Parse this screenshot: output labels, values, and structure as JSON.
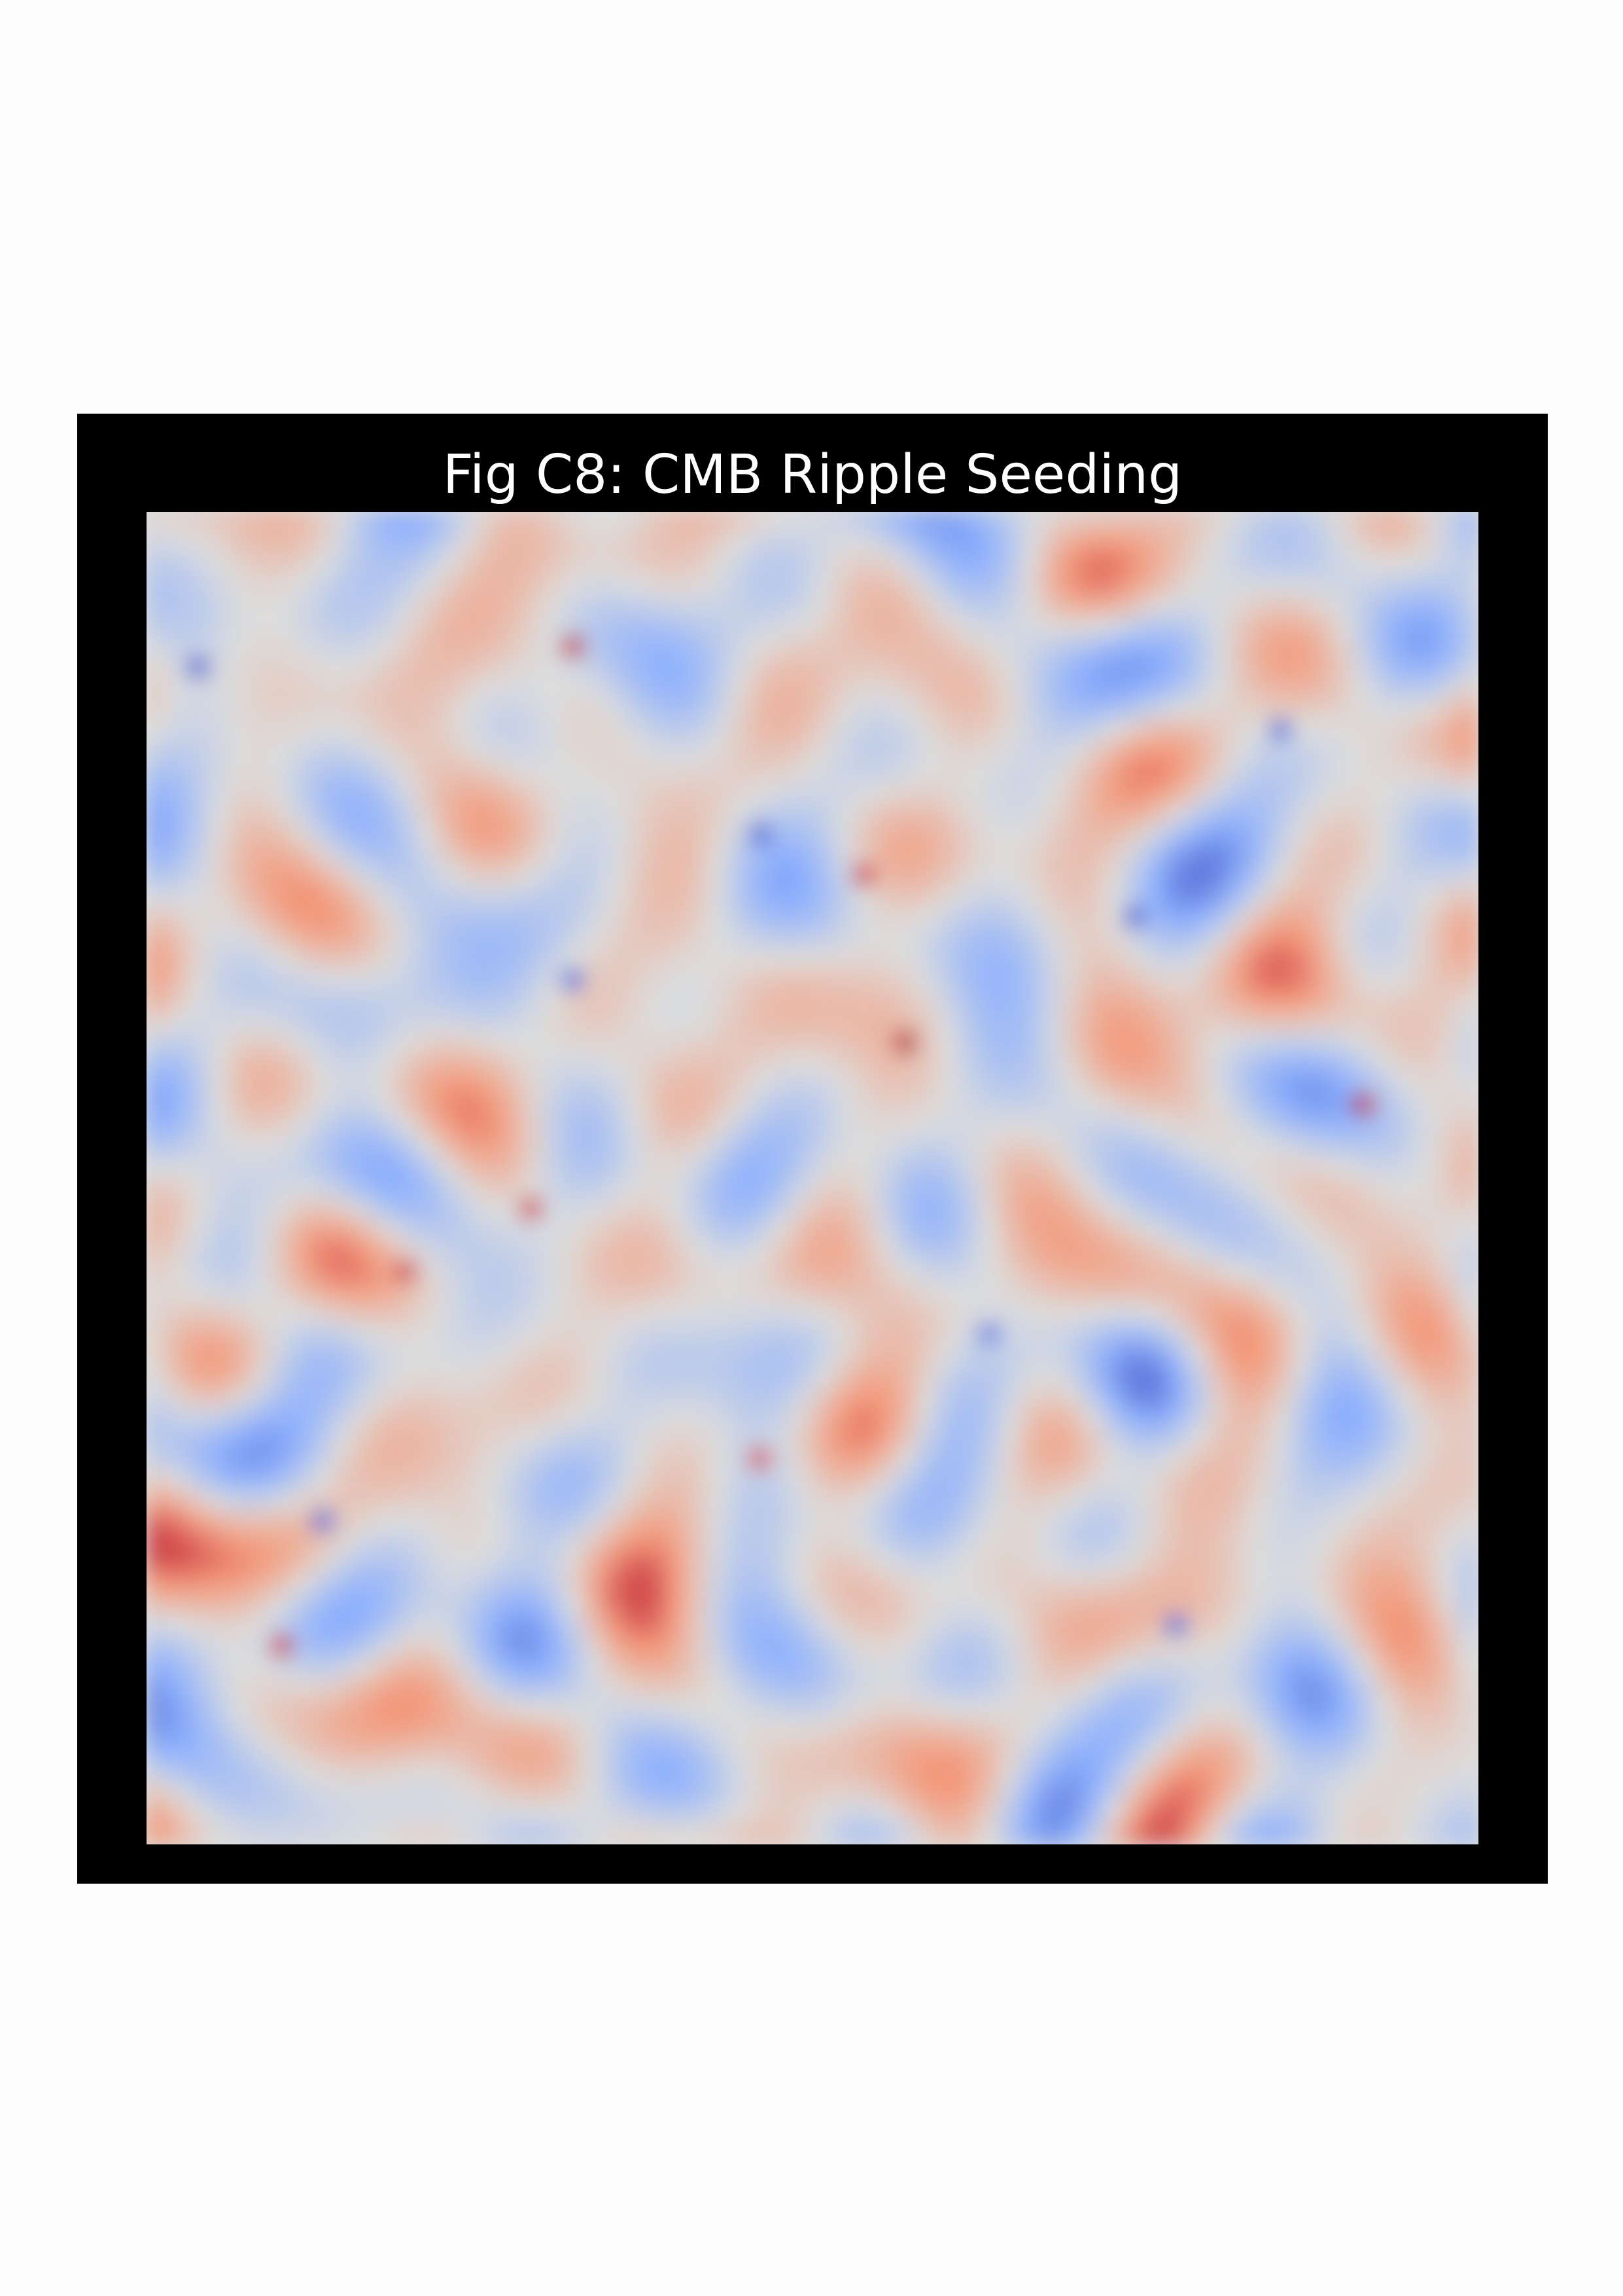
{
  "page": {
    "background": "#fdfdfd"
  },
  "figure": {
    "background": "#000000"
  },
  "chart_data": {
    "type": "heatmap",
    "title": "Fig C8: CMB Ripple Seeding",
    "xlabel": "",
    "ylabel": "",
    "axes_visible": false,
    "grid": false,
    "legend": "none",
    "colormap": "coolwarm",
    "colormap_stops": [
      "#3b4cc0",
      "#8db0fe",
      "#dddddd",
      "#f49a7b",
      "#b40426"
    ],
    "pattern": "isotropic Gaussian random field (small-scale temperature fluctuations)",
    "resolution": 64,
    "value_range": [
      -1,
      1
    ],
    "hotspots": [
      {
        "col": 36,
        "row": 25,
        "value": 1.0
      },
      {
        "col": 58,
        "row": 28,
        "value": 0.95
      },
      {
        "col": 20,
        "row": 6,
        "value": 0.9
      },
      {
        "col": 34,
        "row": 17,
        "value": 0.8
      },
      {
        "col": 6,
        "row": 54,
        "value": 0.85
      },
      {
        "col": 29,
        "row": 45,
        "value": 0.75
      },
      {
        "col": 12,
        "row": 36,
        "value": 0.8
      },
      {
        "col": 18,
        "row": 33,
        "value": 0.8
      }
    ],
    "coldspots": [
      {
        "col": 2,
        "row": 7,
        "value": -0.9
      },
      {
        "col": 47,
        "row": 19,
        "value": -0.85
      },
      {
        "col": 54,
        "row": 10,
        "value": -0.8
      },
      {
        "col": 29,
        "row": 15,
        "value": -0.85
      },
      {
        "col": 8,
        "row": 48,
        "value": -0.85
      },
      {
        "col": 20,
        "row": 22,
        "value": -0.8
      },
      {
        "col": 40,
        "row": 39,
        "value": -0.75
      },
      {
        "col": 49,
        "row": 53,
        "value": -0.8
      }
    ]
  }
}
